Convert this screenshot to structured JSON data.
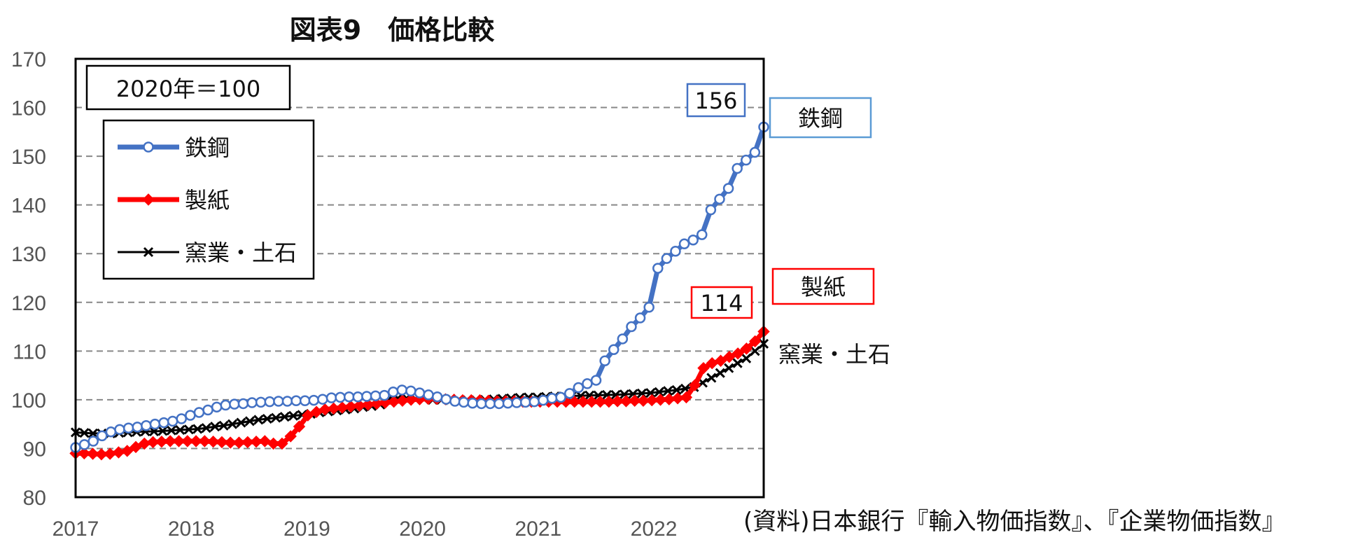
{
  "chart_data": {
    "type": "line",
    "title": "図表9　価格比較",
    "base_note": "2020年＝100",
    "source": "(資料)日本銀行『輸入物価指数』、『企業物価指数』",
    "ylim": [
      80,
      170
    ],
    "yticks": [
      80,
      90,
      100,
      110,
      120,
      130,
      140,
      150,
      160,
      170
    ],
    "xlim": [
      2017,
      2022.95
    ],
    "xticks": [
      "2017",
      "2018",
      "2019",
      "2020",
      "2021",
      "2022"
    ],
    "grid": true,
    "legend": "top-left",
    "series": [
      {
        "name": "鉄鋼",
        "color": "#4472C4",
        "marker": "circle",
        "end_label": "156",
        "values": [
          90.2,
          90.8,
          91.5,
          92.6,
          93.4,
          93.9,
          94.2,
          94.4,
          94.7,
          95.0,
          95.3,
          95.6,
          96.1,
          96.8,
          97.4,
          97.9,
          98.5,
          98.9,
          99.1,
          99.2,
          99.4,
          99.5,
          99.6,
          99.7,
          99.7,
          99.8,
          99.8,
          99.9,
          100.1,
          100.4,
          100.5,
          100.6,
          100.6,
          100.7,
          100.8,
          100.9,
          101.6,
          102.0,
          101.8,
          101.4,
          101.0,
          100.6,
          100.1,
          99.7,
          99.5,
          99.3,
          99.2,
          99.2,
          99.2,
          99.3,
          99.4,
          99.5,
          99.6,
          99.9,
          100.3,
          100.5,
          101.3,
          102.5,
          103.3,
          104.0,
          108.0,
          110.3,
          112.5,
          115.0,
          116.8,
          119.0,
          127.0,
          129.0,
          130.5,
          132.0,
          132.8,
          133.9,
          139.0,
          141.2,
          143.4,
          147.5,
          149.2,
          150.8,
          156.0
        ]
      },
      {
        "name": "製紙",
        "color": "#FF0000",
        "marker": "diamond",
        "end_label": "114",
        "values": [
          89.0,
          89.0,
          88.9,
          88.8,
          88.9,
          89.2,
          89.5,
          90.3,
          91.0,
          91.3,
          91.4,
          91.5,
          91.5,
          91.5,
          91.5,
          91.5,
          91.4,
          91.3,
          91.2,
          91.2,
          91.3,
          91.4,
          91.5,
          91.0,
          91.0,
          92.5,
          94.5,
          96.8,
          97.5,
          98.0,
          98.2,
          98.4,
          98.6,
          98.8,
          99.0,
          99.2,
          99.4,
          99.6,
          99.8,
          100.0,
          100.1,
          100.2,
          100.2,
          100.1,
          100.0,
          99.9,
          99.9,
          99.9,
          99.8,
          99.7,
          99.7,
          99.7,
          99.6,
          99.6,
          99.6,
          99.6,
          99.6,
          99.6,
          99.6,
          99.6,
          99.6,
          99.6,
          99.6,
          99.7,
          99.7,
          99.8,
          99.8,
          99.9,
          100.0,
          100.1,
          100.3,
          100.5,
          103.0,
          106.5,
          107.5,
          108.0,
          108.8,
          109.5,
          110.5,
          112.0,
          114.0
        ]
      },
      {
        "name": "窯業・土石",
        "color": "#000000",
        "marker": "x",
        "end_label": "窯業・土石",
        "values": [
          93.3,
          93.2,
          93.1,
          93.1,
          93.1,
          93.2,
          93.3,
          93.4,
          93.5,
          93.5,
          93.6,
          93.7,
          93.8,
          93.9,
          94.0,
          94.2,
          94.5,
          94.7,
          95.0,
          95.3,
          95.6,
          95.9,
          96.1,
          96.3,
          96.5,
          96.7,
          96.9,
          97.1,
          97.4,
          97.6,
          97.8,
          98.0,
          98.2,
          98.5,
          98.7,
          99.0,
          100.2,
          100.3,
          100.3,
          100.2,
          100.1,
          100.0,
          100.0,
          99.9,
          99.9,
          99.9,
          99.9,
          100.0,
          100.1,
          100.2,
          100.3,
          100.4,
          100.5,
          100.5,
          100.6,
          100.7,
          100.7,
          100.8,
          100.8,
          100.9,
          100.9,
          101.0,
          101.0,
          101.1,
          101.2,
          101.3,
          101.4,
          101.6,
          101.8,
          102.0,
          102.3,
          102.6,
          103.5,
          104.5,
          105.5,
          106.5,
          107.5,
          108.5,
          110.0,
          111.5
        ]
      }
    ]
  }
}
